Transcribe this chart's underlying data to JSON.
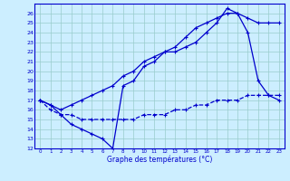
{
  "xlabel": "Graphe des températures (°C)",
  "background_color": "#cceeff",
  "line_color": "#0000cc",
  "xlim": [
    -0.5,
    23.5
  ],
  "ylim": [
    12,
    27
  ],
  "xticks": [
    0,
    1,
    2,
    3,
    4,
    5,
    6,
    7,
    8,
    9,
    10,
    11,
    12,
    13,
    14,
    15,
    16,
    17,
    18,
    19,
    20,
    21,
    22,
    23
  ],
  "yticks": [
    12,
    13,
    14,
    15,
    16,
    17,
    18,
    19,
    20,
    21,
    22,
    23,
    24,
    25,
    26
  ],
  "line1_x": [
    0,
    1,
    2,
    3,
    4,
    5,
    6,
    7,
    8,
    9,
    10,
    11,
    12,
    13,
    14,
    15,
    16,
    17,
    18,
    19,
    20,
    21,
    22,
    23
  ],
  "line1_y": [
    17.0,
    16.5,
    16.0,
    16.5,
    17.0,
    17.5,
    18.0,
    18.5,
    19.5,
    20.0,
    21.0,
    21.5,
    22.0,
    22.5,
    23.5,
    24.5,
    25.0,
    25.5,
    26.0,
    26.0,
    25.5,
    25.0,
    25.0,
    25.0
  ],
  "line2_x": [
    0,
    1,
    2,
    3,
    4,
    5,
    6,
    7,
    8,
    9,
    10,
    11,
    12,
    13,
    14,
    15,
    16,
    17,
    18,
    19,
    20,
    21,
    22,
    23
  ],
  "line2_y": [
    17.0,
    16.5,
    15.5,
    14.5,
    14.0,
    13.5,
    13.0,
    12.0,
    18.5,
    19.0,
    20.5,
    21.0,
    22.0,
    22.0,
    22.5,
    23.0,
    24.0,
    25.0,
    26.5,
    26.0,
    24.0,
    19.0,
    17.5,
    17.0
  ],
  "line3_x": [
    0,
    1,
    2,
    3,
    4,
    5,
    6,
    7,
    8,
    9,
    10,
    11,
    12,
    13,
    14,
    15,
    16,
    17,
    18,
    19,
    20,
    21,
    22,
    23
  ],
  "line3_y": [
    17.0,
    16.0,
    15.5,
    15.5,
    15.0,
    15.0,
    15.0,
    15.0,
    15.0,
    15.0,
    15.5,
    15.5,
    15.5,
    16.0,
    16.0,
    16.5,
    16.5,
    17.0,
    17.0,
    17.0,
    17.5,
    17.5,
    17.5,
    17.5
  ]
}
